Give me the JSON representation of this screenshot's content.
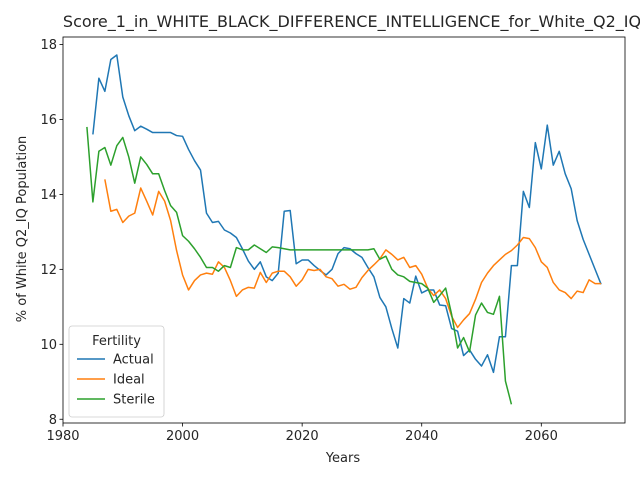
{
  "chart_data": {
    "type": "line",
    "title": "Score_1_in_WHITE_BLACK_DIFFERENCE_INTELLIGENCE_for_White_Q2_IQ",
    "xlabel": "Years",
    "ylabel": "% of White Q2_IQ Population",
    "xlim": [
      1980,
      2074
    ],
    "ylim": [
      7.9,
      18.2
    ],
    "xticks": [
      1980,
      2000,
      2020,
      2040,
      2060
    ],
    "yticks": [
      8,
      10,
      12,
      14,
      16,
      18
    ],
    "legend": {
      "title": "Fertility",
      "placement": "lower-left"
    },
    "grid": false,
    "series": [
      {
        "name": "Actual",
        "color": "#1f77b4",
        "x": [
          1985,
          1986,
          1987,
          1988,
          1989,
          1990,
          1991,
          1992,
          1993,
          1994,
          1995,
          1996,
          1997,
          1998,
          1999,
          2000,
          2001,
          2002,
          2003,
          2004,
          2005,
          2006,
          2007,
          2008,
          2009,
          2010,
          2011,
          2012,
          2013,
          2014,
          2015,
          2016,
          2017,
          2018,
          2019,
          2020,
          2021,
          2022,
          2023,
          2024,
          2025,
          2026,
          2027,
          2028,
          2029,
          2030,
          2031,
          2032,
          2033,
          2034,
          2035,
          2036,
          2037,
          2038,
          2039,
          2040,
          2041,
          2042,
          2043,
          2044,
          2045,
          2046,
          2047,
          2048,
          2049,
          2050,
          2051,
          2052,
          2053,
          2054,
          2055,
          2056,
          2057,
          2058,
          2059,
          2060,
          2061,
          2062,
          2063,
          2064,
          2065,
          2066,
          2067,
          2068,
          2069,
          2070
        ],
        "values": [
          15.6,
          17.1,
          16.75,
          17.6,
          17.72,
          16.6,
          16.1,
          15.7,
          15.82,
          15.74,
          15.65,
          15.65,
          15.65,
          15.65,
          15.57,
          15.55,
          15.2,
          14.9,
          14.65,
          13.5,
          13.25,
          13.28,
          13.05,
          12.97,
          12.85,
          12.55,
          12.22,
          12.0,
          12.2,
          11.8,
          11.7,
          11.9,
          13.55,
          13.57,
          12.15,
          12.25,
          12.25,
          12.1,
          11.97,
          11.85,
          12.0,
          12.42,
          12.58,
          12.55,
          12.42,
          12.32,
          12.05,
          11.8,
          11.25,
          11.0,
          10.42,
          9.9,
          11.22,
          11.1,
          11.82,
          11.37,
          11.45,
          11.45,
          11.05,
          11.03,
          10.42,
          10.35,
          9.7,
          9.85,
          9.6,
          9.42,
          9.72,
          9.25,
          10.2,
          10.2,
          12.1,
          12.1,
          14.08,
          13.65,
          15.38,
          14.68,
          15.85,
          14.78,
          15.15,
          14.55,
          14.15,
          13.3,
          12.8,
          12.4,
          12.0,
          11.6
        ]
      },
      {
        "name": "Ideal",
        "color": "#ff7f0e",
        "x": [
          1987,
          1988,
          1989,
          1990,
          1991,
          1992,
          1993,
          1994,
          1995,
          1996,
          1997,
          1998,
          1999,
          2000,
          2001,
          2002,
          2003,
          2004,
          2005,
          2006,
          2007,
          2008,
          2009,
          2010,
          2011,
          2012,
          2013,
          2014,
          2015,
          2016,
          2017,
          2018,
          2019,
          2020,
          2021,
          2022,
          2023,
          2024,
          2025,
          2026,
          2027,
          2028,
          2029,
          2030,
          2031,
          2032,
          2033,
          2034,
          2035,
          2036,
          2037,
          2038,
          2039,
          2040,
          2041,
          2042,
          2043,
          2044,
          2045,
          2046,
          2047,
          2048,
          2049,
          2050,
          2051,
          2052,
          2053,
          2054,
          2055,
          2056,
          2057,
          2058,
          2059,
          2060,
          2061,
          2062,
          2063,
          2064,
          2065,
          2066,
          2067,
          2068,
          2069,
          2070
        ],
        "values": [
          14.4,
          13.55,
          13.6,
          13.25,
          13.42,
          13.5,
          14.17,
          13.82,
          13.45,
          14.08,
          13.82,
          13.3,
          12.5,
          11.85,
          11.45,
          11.7,
          11.85,
          11.9,
          11.87,
          12.2,
          12.05,
          11.7,
          11.28,
          11.45,
          11.52,
          11.5,
          11.92,
          11.65,
          11.9,
          11.95,
          11.95,
          11.8,
          11.55,
          11.72,
          12.0,
          11.97,
          12.0,
          11.8,
          11.75,
          11.55,
          11.6,
          11.47,
          11.52,
          11.78,
          11.97,
          12.12,
          12.28,
          12.52,
          12.4,
          12.25,
          12.32,
          12.05,
          12.1,
          11.87,
          11.5,
          11.3,
          11.45,
          11.22,
          10.75,
          10.45,
          10.65,
          10.82,
          11.2,
          11.65,
          11.9,
          12.1,
          12.25,
          12.4,
          12.5,
          12.65,
          12.85,
          12.82,
          12.58,
          12.2,
          12.05,
          11.65,
          11.45,
          11.38,
          11.22,
          11.42,
          11.38,
          11.72,
          11.62,
          11.62
        ]
      },
      {
        "name": "Sterile",
        "color": "#2ca02c",
        "x": [
          1984,
          1985,
          1986,
          1987,
          1988,
          1989,
          1990,
          1991,
          1992,
          1993,
          1994,
          1995,
          1996,
          1997,
          1998,
          1999,
          2000,
          2001,
          2002,
          2003,
          2004,
          2005,
          2006,
          2007,
          2008,
          2009,
          2010,
          2011,
          2012,
          2013,
          2014,
          2015,
          2016,
          2017,
          2018,
          2019,
          2020,
          2021,
          2022,
          2023,
          2024,
          2025,
          2026,
          2027,
          2028,
          2029,
          2030,
          2031,
          2032,
          2033,
          2034,
          2035,
          2036,
          2037,
          2038,
          2039,
          2040,
          2041,
          2042,
          2043,
          2044,
          2045,
          2046,
          2047,
          2048,
          2049,
          2050,
          2051,
          2052,
          2053,
          2054,
          2055
        ],
        "values": [
          15.8,
          13.8,
          15.15,
          15.25,
          14.78,
          15.3,
          15.52,
          15.0,
          14.3,
          15.0,
          14.8,
          14.55,
          14.55,
          14.1,
          13.7,
          13.52,
          12.9,
          12.75,
          12.55,
          12.32,
          12.05,
          12.05,
          11.95,
          12.1,
          12.05,
          12.58,
          12.52,
          12.52,
          12.65,
          12.55,
          12.45,
          12.6,
          12.58,
          12.55,
          12.52,
          12.52,
          12.52,
          12.52,
          12.52,
          12.52,
          12.52,
          12.52,
          12.52,
          12.52,
          12.52,
          12.52,
          12.52,
          12.52,
          12.55,
          12.27,
          12.35,
          12.0,
          11.85,
          11.8,
          11.68,
          11.65,
          11.62,
          11.5,
          11.12,
          11.3,
          11.5,
          10.8,
          9.9,
          10.18,
          9.8,
          10.78,
          11.1,
          10.85,
          10.8,
          11.28,
          9.02,
          8.4
        ]
      }
    ]
  }
}
